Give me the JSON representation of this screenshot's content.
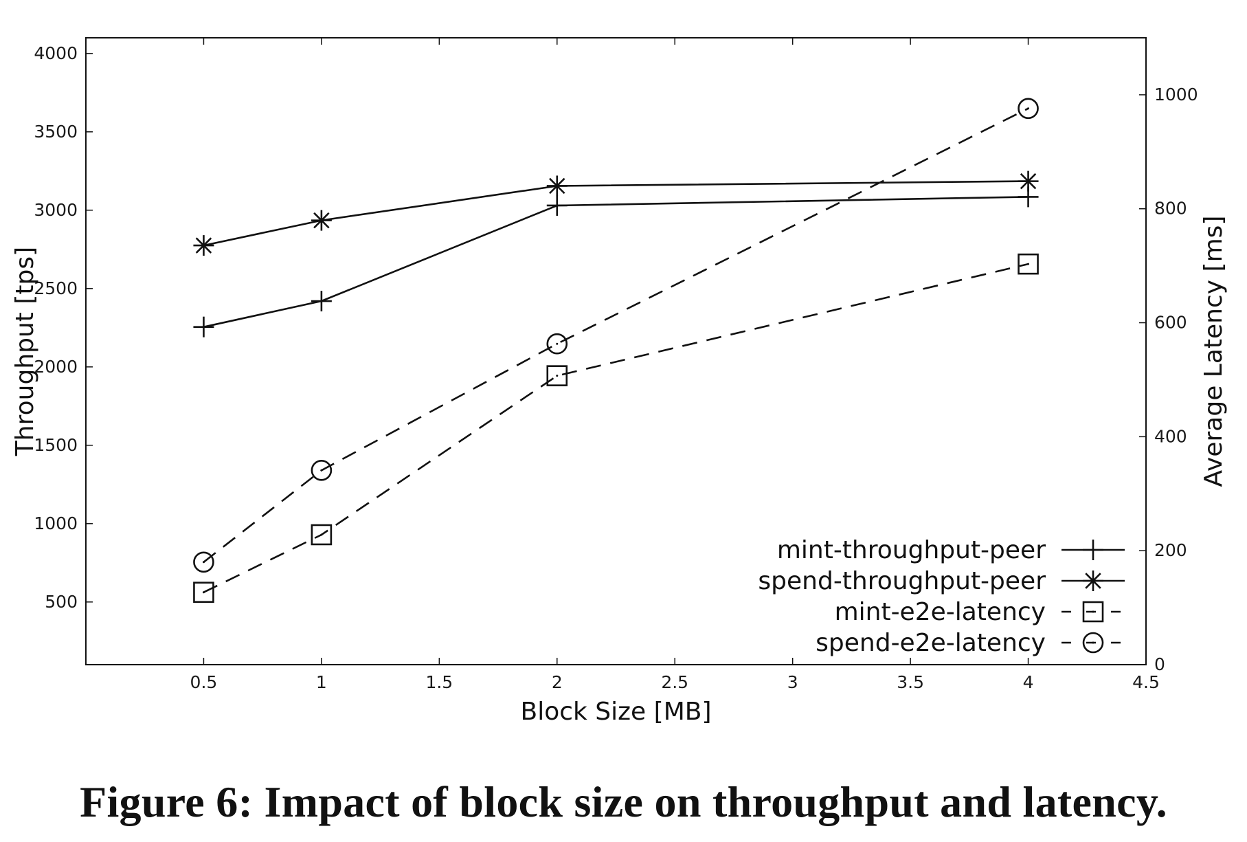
{
  "caption": "Figure 6: Impact of block size on throughput and latency.",
  "chart_data": {
    "type": "line",
    "xlabel": "Block Size [MB]",
    "ylabel": "Throughput [tps]",
    "y2label": "Average Latency [ms]",
    "xlim": [
      0,
      4.5
    ],
    "ylim": [
      100,
      4100
    ],
    "y2lim": [
      0,
      1100
    ],
    "xticks": [
      "0.5",
      "1",
      "1.5",
      "2",
      "2.5",
      "3",
      "3.5",
      "4",
      "4.5"
    ],
    "yticks": [
      "500",
      "1000",
      "1500",
      "2000",
      "2500",
      "3000",
      "3500",
      "4000"
    ],
    "y2ticks": [
      "0",
      "200",
      "400",
      "600",
      "800",
      "1000"
    ],
    "grid": false,
    "legend_position": "bottom-right",
    "x": [
      0.5,
      1,
      2,
      4
    ],
    "series": [
      {
        "name": "mint-throughput-peer",
        "axis": "left",
        "style": "solid",
        "marker": "plus",
        "values": [
          2255,
          2420,
          3030,
          3085
        ]
      },
      {
        "name": "spend-throughput-peer",
        "axis": "left",
        "style": "solid",
        "marker": "star",
        "values": [
          2775,
          2935,
          3155,
          3185
        ]
      },
      {
        "name": "mint-e2e-latency",
        "axis": "right",
        "style": "dashed",
        "marker": "square",
        "values": [
          127,
          228,
          507,
          703
        ]
      },
      {
        "name": "spend-e2e-latency",
        "axis": "right",
        "style": "dashed",
        "marker": "circle",
        "values": [
          180,
          341,
          563,
          976
        ]
      }
    ]
  }
}
